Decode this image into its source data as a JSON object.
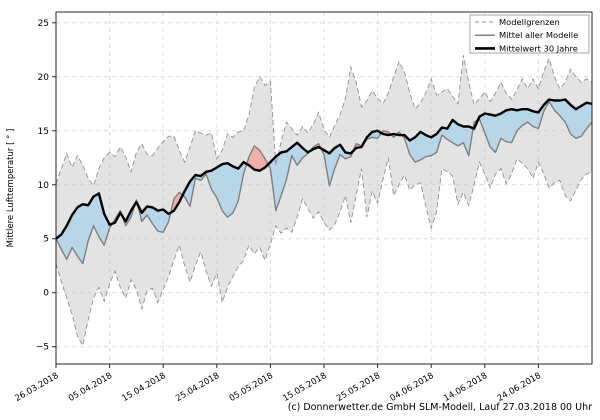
{
  "chart_data": {
    "type": "area+line",
    "title": "",
    "ylabel": "Mittlere Lufttemperatur [ ° ]",
    "xlabel": "",
    "ylim": [
      -6.6,
      26.0
    ],
    "ytick_values": [
      25,
      20,
      15,
      10,
      5,
      0,
      -5
    ],
    "ytick_labels": [
      "25",
      "20",
      "15",
      "10",
      "5",
      "0",
      "−5"
    ],
    "x_days_total": 100,
    "x_tick_days": [
      0,
      10,
      20,
      30,
      40,
      50,
      60,
      70,
      80,
      90
    ],
    "x_tick_labels": [
      "26.03.2018",
      "05.04.2018",
      "15.04.2018",
      "25.04.2018",
      "05.05.2018",
      "15.05.2018",
      "25.05.2018",
      "04.06.2018",
      "14.06.2018",
      "24.06.2018"
    ],
    "grid": true,
    "legend_position": "top-right",
    "legend": [
      {
        "label": "Modellgrenzen",
        "style": "dashed-gray"
      },
      {
        "label": "Mittel aller Modelle",
        "style": "solid-gray"
      },
      {
        "label": "Mittelwert 30 Jahre",
        "style": "solid-black"
      }
    ],
    "series": [
      {
        "name": "Modellgrenzen-max",
        "values": [
          10.1,
          11.5,
          12.9,
          11.6,
          12.7,
          11.8,
          10.6,
          9.9,
          11.5,
          12.5,
          13.0,
          12.6,
          13.5,
          12.6,
          11.2,
          13.0,
          13.8,
          12.8,
          12.7,
          13.4,
          14.0,
          14.5,
          14.5,
          13.2,
          12.1,
          13.5,
          15.0,
          14.8,
          14.6,
          14.8,
          12.4,
          13.2,
          14.7,
          14.4,
          14.9,
          15.0,
          16.5,
          19.0,
          20.0,
          19.2,
          19.6,
          11.8,
          14.0,
          15.8,
          15.2,
          14.6,
          15.4,
          14.8,
          15.6,
          16.7,
          15.1,
          14.4,
          15.5,
          16.5,
          18.0,
          20.9,
          19.5,
          17.2,
          17.8,
          18.7,
          18.0,
          17.5,
          18.5,
          20.0,
          21.4,
          20.5,
          18.5,
          17.0,
          17.6,
          18.5,
          19.8,
          18.3,
          18.6,
          18.9,
          18.2,
          17.5,
          22.0,
          19.5,
          17.4,
          18.0,
          18.6,
          17.7,
          18.5,
          19.5,
          18.5,
          17.9,
          18.8,
          19.8,
          18.9,
          19.8,
          18.9,
          20.5,
          21.7,
          20.0,
          18.9,
          19.5,
          20.7,
          20.0,
          19.5,
          19.8,
          19.5
        ]
      },
      {
        "name": "Modellgrenzen-min",
        "values": [
          2.7,
          1.0,
          -0.5,
          -2.0,
          -4.0,
          -4.9,
          -2.5,
          -0.5,
          0.5,
          -0.8,
          0.8,
          2.0,
          0.5,
          -0.5,
          1.2,
          0.3,
          -1.5,
          0.2,
          0.4,
          -0.9,
          0.3,
          1.5,
          3.0,
          4.4,
          2.5,
          1.0,
          2.5,
          3.8,
          2.0,
          0.6,
          1.8,
          -0.9,
          0.5,
          1.5,
          2.4,
          3.0,
          4.4,
          3.6,
          4.2,
          3.0,
          4.5,
          6.2,
          5.5,
          6.0,
          5.6,
          7.0,
          8.7,
          7.8,
          6.9,
          7.5,
          6.5,
          5.8,
          6.3,
          7.5,
          9.0,
          6.5,
          9.0,
          11.5,
          7.0,
          9.4,
          8.3,
          10.5,
          12.5,
          9.0,
          10.0,
          10.9,
          9.5,
          10.0,
          10.2,
          8.0,
          6.0,
          7.5,
          11.5,
          11.2,
          10.8,
          8.2,
          9.3,
          8.1,
          10.0,
          12.1,
          11.0,
          9.7,
          11.0,
          11.5,
          10.1,
          11.0,
          12.4,
          12.0,
          11.5,
          10.6,
          12.1,
          11.0,
          9.7,
          10.2,
          10.4,
          9.0,
          8.5,
          9.5,
          10.5,
          11.0,
          11.2
        ]
      },
      {
        "name": "Mittel aller Modelle",
        "values": [
          5.0,
          4.0,
          3.1,
          4.2,
          3.4,
          2.7,
          4.8,
          6.2,
          5.2,
          4.4,
          6.0,
          6.8,
          7.6,
          6.2,
          7.0,
          8.6,
          6.6,
          7.2,
          6.4,
          5.7,
          5.6,
          6.6,
          8.7,
          9.3,
          8.9,
          8.0,
          10.6,
          10.4,
          11.0,
          9.6,
          8.8,
          7.6,
          7.0,
          7.4,
          8.5,
          11.0,
          12.6,
          13.6,
          13.2,
          12.4,
          11.5,
          7.6,
          9.0,
          10.5,
          12.7,
          11.8,
          12.5,
          12.9,
          13.5,
          13.8,
          12.8,
          9.9,
          11.5,
          12.8,
          12.4,
          12.6,
          13.8,
          13.6,
          14.2,
          14.4,
          14.3,
          15.0,
          14.9,
          14.4,
          14.9,
          14.3,
          12.8,
          12.1,
          12.3,
          12.6,
          12.7,
          13.0,
          14.6,
          14.2,
          13.9,
          13.6,
          13.9,
          12.7,
          15.8,
          16.1,
          14.8,
          13.5,
          13.0,
          14.3,
          14.0,
          13.9,
          15.0,
          15.5,
          15.8,
          15.4,
          15.2,
          16.8,
          17.7,
          16.9,
          16.4,
          15.8,
          14.7,
          14.3,
          14.5,
          15.2,
          15.8
        ]
      },
      {
        "name": "Mittelwert 30 Jahre",
        "values": [
          5.0,
          5.4,
          6.2,
          7.2,
          7.9,
          8.2,
          8.1,
          8.9,
          9.2,
          7.3,
          6.3,
          6.5,
          7.4,
          6.6,
          7.6,
          8.4,
          7.4,
          8.0,
          7.9,
          7.6,
          7.7,
          7.3,
          7.6,
          8.4,
          9.4,
          10.3,
          10.9,
          10.8,
          11.2,
          11.3,
          11.6,
          11.9,
          12.0,
          11.7,
          11.5,
          12.1,
          11.8,
          11.4,
          11.3,
          11.6,
          12.1,
          12.6,
          13.0,
          13.1,
          13.5,
          13.9,
          13.4,
          13.0,
          13.3,
          13.5,
          13.2,
          12.9,
          13.4,
          13.7,
          13.0,
          12.9,
          13.4,
          13.5,
          14.4,
          14.9,
          15.0,
          14.7,
          14.6,
          14.7,
          14.6,
          14.6,
          14.1,
          14.4,
          14.9,
          14.6,
          14.4,
          14.7,
          15.3,
          15.2,
          16.0,
          15.6,
          15.4,
          15.4,
          15.2,
          16.3,
          16.6,
          16.5,
          16.4,
          16.6,
          16.9,
          17.0,
          16.9,
          17.0,
          17.0,
          16.8,
          16.7,
          17.4,
          17.9,
          17.8,
          17.8,
          17.9,
          17.4,
          17.0,
          17.3,
          17.6,
          17.5
        ]
      }
    ],
    "colors": {
      "band": "#e3e3e3",
      "band_edge": "#8f8f8f",
      "colder_fill": "#b7d7e8",
      "warmer_fill": "#f1b0a7",
      "model_mean_line": "#7f7f7f",
      "mean30_line": "#000000",
      "grid": "#c9c9c9",
      "spine": "#262626",
      "text": "#000000"
    },
    "footer": "(c) Donnerwetter.de GmbH SLM-Modell, Lauf 27.03.2018 00 Uhr"
  }
}
